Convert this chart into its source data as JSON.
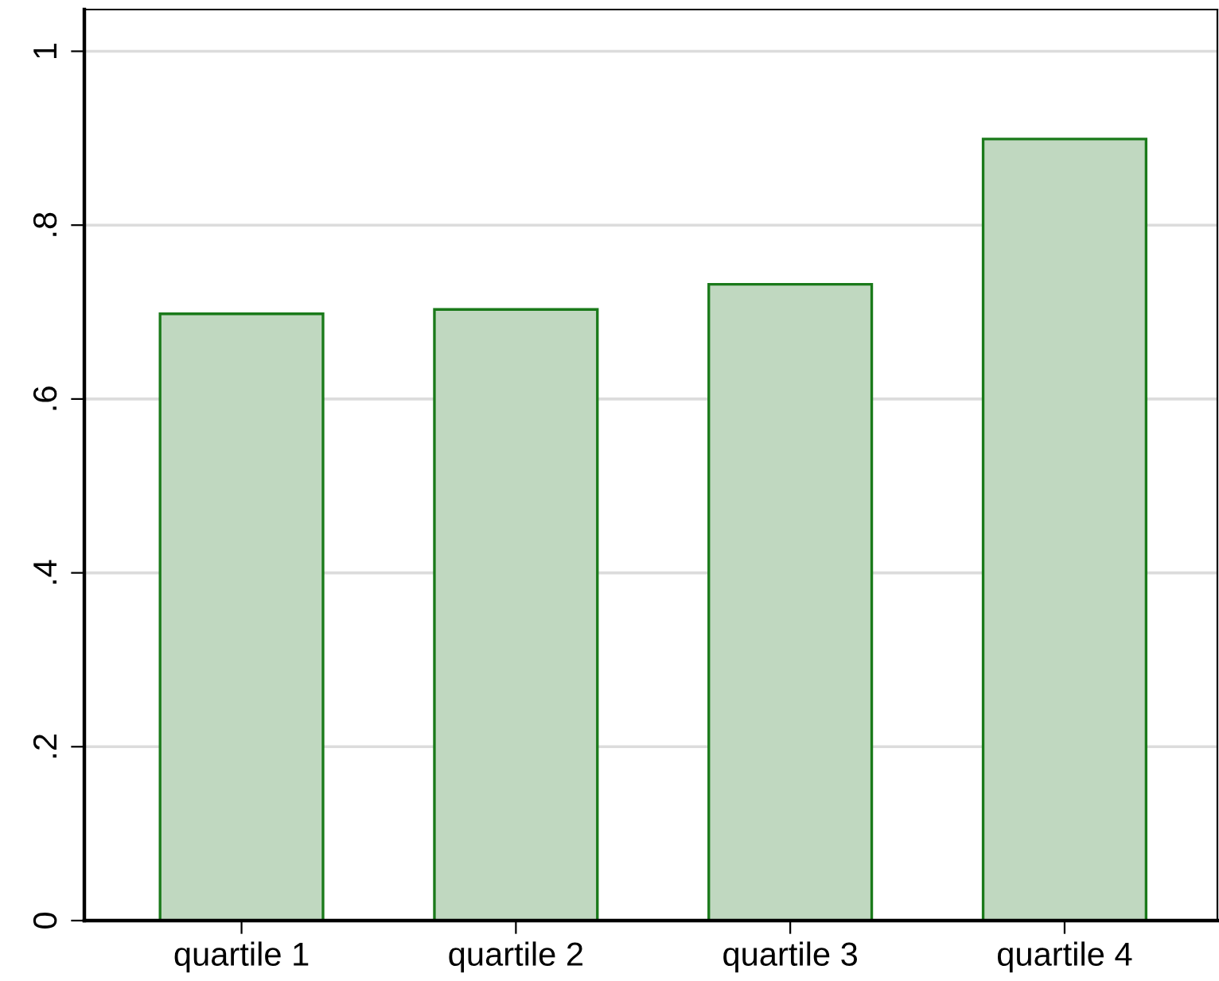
{
  "chart_data": {
    "type": "bar",
    "categories": [
      "quartile 1",
      "quartile 2",
      "quartile 3",
      "quartile 4"
    ],
    "values": [
      0.698,
      0.703,
      0.732,
      0.899
    ],
    "color": "#c0d8c0",
    "ylim": [
      0,
      1.048
    ],
    "yticks": [
      {
        "value": 0,
        "label": "0"
      },
      {
        "value": 0.2,
        "label": ".2"
      },
      {
        "value": 0.4,
        "label": ".4"
      },
      {
        "value": 0.6,
        "label": ".6"
      },
      {
        "value": 0.8,
        "label": ".8"
      },
      {
        "value": 1,
        "label": "1"
      }
    ],
    "grid": "y",
    "legend": false
  }
}
